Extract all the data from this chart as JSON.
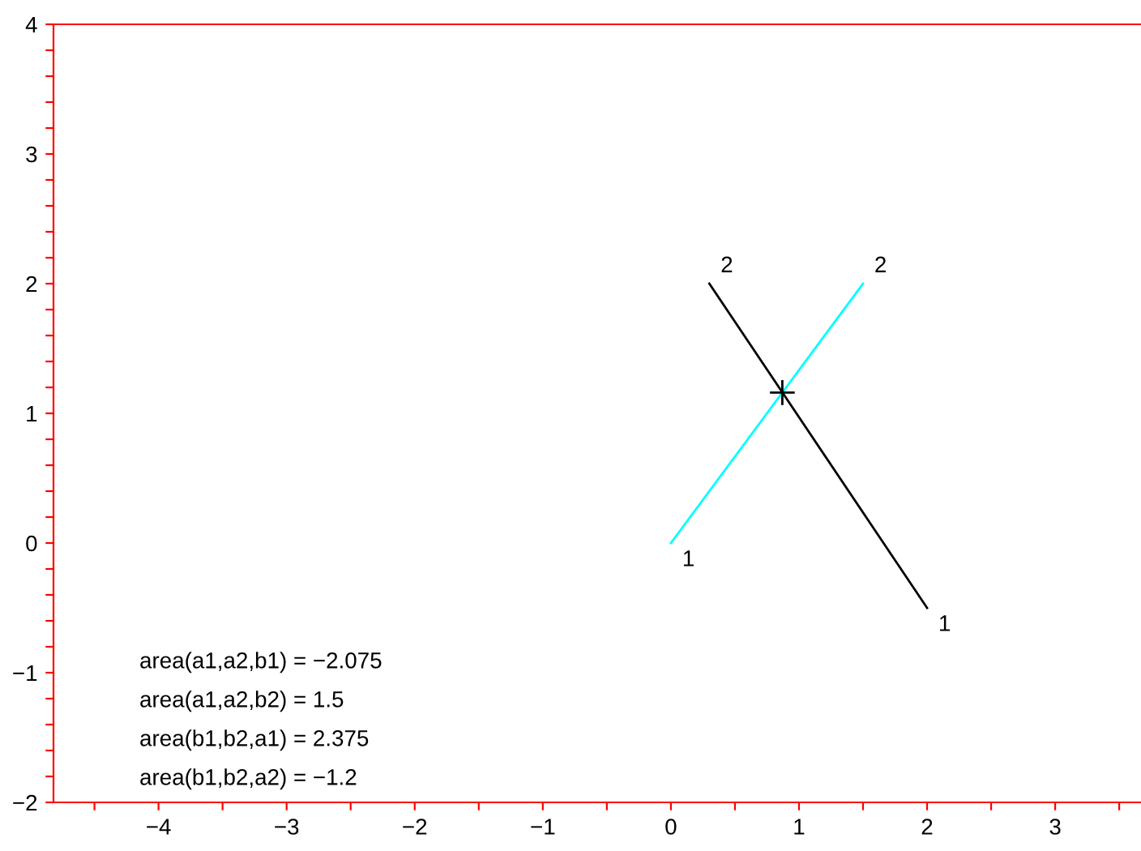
{
  "chart_data": {
    "type": "line",
    "xlim": [
      -4.82,
      3.67
    ],
    "ylim": [
      -2,
      4
    ],
    "xticks": [
      -4,
      -3,
      -2,
      -1,
      0,
      1,
      2,
      3,
      {
        "value": -4.5,
        "label": null
      },
      {
        "value": -3.5,
        "label": null
      },
      {
        "value": -2.5,
        "label": null
      },
      {
        "value": -1.5,
        "label": null
      },
      {
        "value": -0.5,
        "label": null
      },
      {
        "value": 0.5,
        "label": null
      },
      {
        "value": 1.5,
        "label": null
      },
      {
        "value": 2.5,
        "label": null
      },
      {
        "value": 3.5,
        "label": null
      }
    ],
    "yticks": [
      -2,
      -1,
      0,
      1,
      2,
      3,
      4,
      {
        "value": -1.8,
        "label": null
      },
      {
        "value": -1.6,
        "label": null
      },
      {
        "value": -1.4,
        "label": null
      },
      {
        "value": -1.2,
        "label": null
      },
      {
        "value": -0.8,
        "label": null
      },
      {
        "value": -0.6,
        "label": null
      },
      {
        "value": -0.4,
        "label": null
      },
      {
        "value": -0.2,
        "label": null
      },
      {
        "value": 0.2,
        "label": null
      },
      {
        "value": 0.4,
        "label": null
      },
      {
        "value": 0.6,
        "label": null
      },
      {
        "value": 0.8,
        "label": null
      },
      {
        "value": 1.2,
        "label": null
      },
      {
        "value": 1.4,
        "label": null
      },
      {
        "value": 1.6,
        "label": null
      },
      {
        "value": 1.8,
        "label": null
      },
      {
        "value": 2.2,
        "label": null
      },
      {
        "value": 2.4,
        "label": null
      },
      {
        "value": 2.6,
        "label": null
      },
      {
        "value": 2.8,
        "label": null
      },
      {
        "value": 3.2,
        "label": null
      },
      {
        "value": 3.4,
        "label": null
      },
      {
        "value": 3.6,
        "label": null
      },
      {
        "value": 3.8,
        "label": null
      }
    ],
    "series": [
      {
        "color": "#000000",
        "x": [
          2,
          0.3
        ],
        "values": [
          -0.5,
          2
        ]
      },
      {
        "color": "#00ffff",
        "x": [
          0,
          1.5
        ],
        "values": [
          0,
          2
        ]
      },
      {
        "type": "scatter",
        "marker": "cross",
        "color": "#000000",
        "x": [
          0.87
        ],
        "values": [
          1.16
        ]
      }
    ],
    "annotations": [
      {
        "text": "1",
        "x": 2,
        "y": -0.5
      },
      {
        "text": "2",
        "x": 0.3,
        "y": 2
      },
      {
        "text": "1",
        "x": 0,
        "y": 0
      },
      {
        "text": "2",
        "x": 1.5,
        "y": 2
      },
      "area(a1,a2,b1) = −2.075",
      "area(a1,a2,b2) = 1.5",
      "area(b1,b2,a1) = 2.375",
      "area(b1,b2,a2) = −1.2"
    ],
    "grid": false,
    "legend": false
  }
}
